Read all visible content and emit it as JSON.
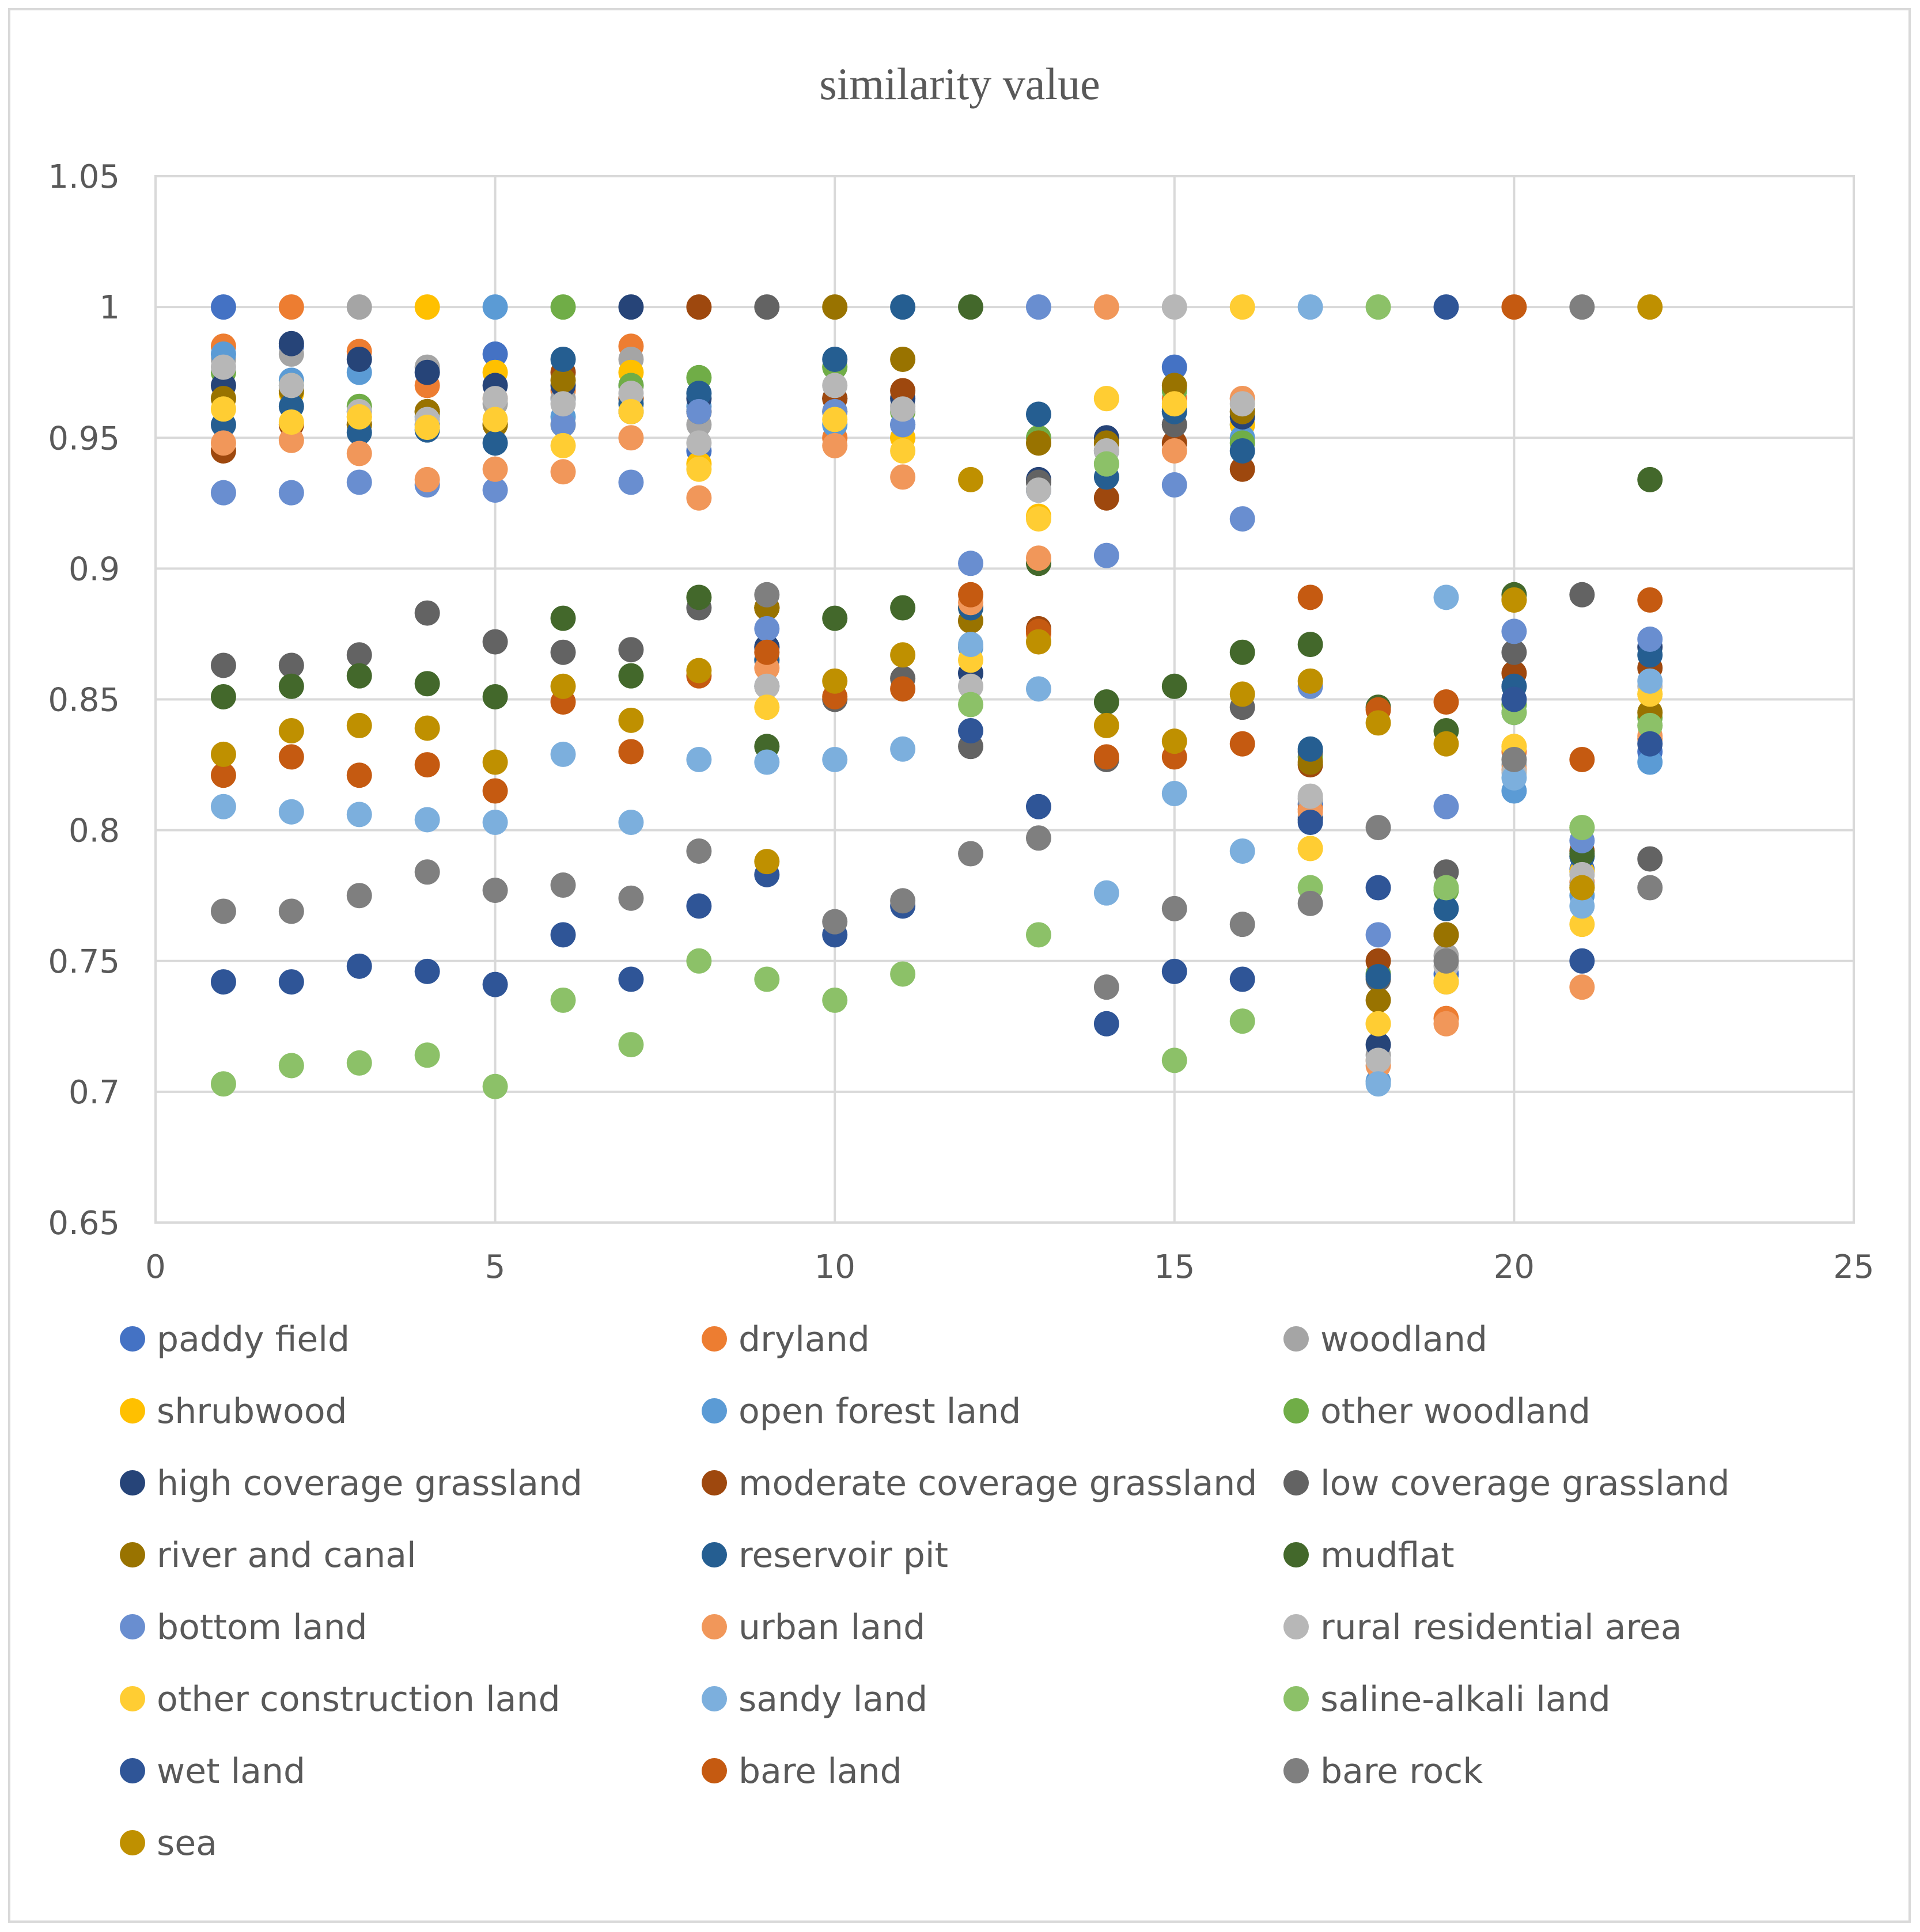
{
  "chart_data": {
    "type": "scatter",
    "title": "similarity value",
    "xlabel": "",
    "ylabel": "",
    "xlim": [
      0,
      25
    ],
    "ylim": [
      0.65,
      1.05
    ],
    "x_ticks": [
      0,
      5,
      10,
      15,
      20,
      25
    ],
    "y_ticks": [
      0.65,
      0.7,
      0.75,
      0.8,
      0.85,
      0.9,
      0.95,
      1,
      1.05
    ],
    "x_tick_labels": [
      "0",
      "5",
      "10",
      "15",
      "20",
      "25"
    ],
    "y_tick_labels": [
      "0.65",
      "0.7",
      "0.75",
      "0.8",
      "0.85",
      "0.9",
      "0.95",
      "1",
      "1.05"
    ],
    "grid": true,
    "legend_position": "bottom",
    "x": [
      1,
      2,
      3,
      4,
      5,
      6,
      7,
      8,
      9,
      10,
      11,
      12,
      13,
      14,
      15,
      16,
      17,
      18,
      19,
      20,
      21,
      22
    ],
    "series": [
      {
        "name": "paddy field",
        "color": "#4472C4",
        "values": [
          1,
          0.985,
          0.96,
          0.955,
          0.982,
          0.965,
          0.97,
          0.945,
          0.855,
          0.96,
          0.955,
          0.86,
          0.93,
          0.945,
          0.977,
          0.955,
          0.81,
          0.745,
          0.745,
          0.845,
          0.785,
          0.83
        ]
      },
      {
        "name": "dryland",
        "color": "#ED7D31",
        "values": [
          0.985,
          1,
          0.983,
          0.97,
          0.965,
          0.968,
          0.985,
          0.96,
          0.885,
          0.95,
          0.95,
          0.885,
          0.875,
          0.945,
          0.965,
          0.965,
          0.808,
          0.712,
          0.728,
          0.83,
          0.78,
          0.835
        ]
      },
      {
        "name": "woodland",
        "color": "#A5A5A5",
        "values": [
          0.98,
          0.982,
          1,
          0.977,
          0.963,
          0.965,
          0.98,
          0.955,
          0.855,
          0.965,
          0.962,
          0.855,
          0.93,
          0.945,
          0.96,
          0.96,
          0.812,
          0.714,
          0.752,
          0.825,
          0.779,
          0.84
        ]
      },
      {
        "name": "shrubwood",
        "color": "#FFC000",
        "values": [
          0.965,
          0.967,
          0.958,
          1,
          0.975,
          0.955,
          0.975,
          0.94,
          0.885,
          0.96,
          0.95,
          0.87,
          0.92,
          0.965,
          0.962,
          0.955,
          0.793,
          0.726,
          0.742,
          0.832,
          0.784,
          0.852
        ]
      },
      {
        "name": "open forest land",
        "color": "#5B9BD5",
        "values": [
          0.982,
          0.972,
          0.975,
          0.958,
          1,
          0.958,
          0.96,
          0.962,
          0.87,
          0.955,
          0.955,
          0.87,
          0.93,
          0.945,
          0.96,
          0.95,
          0.805,
          0.704,
          0.742,
          0.815,
          0.775,
          0.826
        ]
      },
      {
        "name": "other woodland",
        "color": "#70AD47",
        "values": [
          0.975,
          0.97,
          0.962,
          0.96,
          0.955,
          1,
          0.97,
          0.973,
          0.885,
          0.977,
          0.96,
          0.885,
          0.95,
          0.94,
          0.968,
          0.948,
          0.828,
          0.745,
          0.777,
          0.848,
          0.801,
          0.843
        ]
      },
      {
        "name": "high coverage grassland",
        "color": "#264478",
        "values": [
          0.97,
          0.986,
          0.98,
          0.975,
          0.97,
          0.97,
          1,
          0.965,
          0.87,
          0.965,
          0.965,
          0.86,
          0.934,
          0.95,
          0.955,
          0.958,
          0.804,
          0.718,
          0.76,
          0.855,
          0.79,
          0.87
        ]
      },
      {
        "name": "moderate coverage grassland",
        "color": "#9E480E",
        "values": [
          0.945,
          0.955,
          0.955,
          0.96,
          0.955,
          0.975,
          0.965,
          1,
          0.885,
          0.965,
          0.968,
          0.88,
          0.877,
          0.927,
          0.948,
          0.938,
          0.825,
          0.75,
          0.76,
          0.86,
          0.792,
          0.862
        ]
      },
      {
        "name": "low coverage grassland",
        "color": "#636363",
        "values": [
          0.863,
          0.863,
          0.867,
          0.883,
          0.872,
          0.868,
          0.869,
          0.885,
          1,
          0.85,
          0.858,
          0.832,
          0.933,
          0.827,
          0.955,
          0.847,
          0.83,
          0.743,
          0.784,
          0.868,
          0.89,
          0.789
        ]
      },
      {
        "name": "river and canal",
        "color": "#997300",
        "values": [
          0.965,
          0.968,
          0.955,
          0.96,
          0.955,
          0.972,
          0.96,
          0.96,
          0.885,
          1,
          0.98,
          0.88,
          0.948,
          0.948,
          0.97,
          0.96,
          0.826,
          0.735,
          0.76,
          0.888,
          0.778,
          0.845
        ]
      },
      {
        "name": "reservoir pit",
        "color": "#255E91",
        "values": [
          0.955,
          0.962,
          0.952,
          0.953,
          0.948,
          0.98,
          0.963,
          0.967,
          0.865,
          0.98,
          1,
          0.885,
          0.959,
          0.935,
          0.96,
          0.945,
          0.831,
          0.744,
          0.77,
          0.855,
          0.79,
          0.867
        ]
      },
      {
        "name": "mudflat",
        "color": "#43682B",
        "values": [
          0.851,
          0.855,
          0.859,
          0.856,
          0.851,
          0.881,
          0.859,
          0.889,
          0.832,
          0.881,
          0.885,
          1,
          0.902,
          0.849,
          0.855,
          0.868,
          0.871,
          0.847,
          0.838,
          0.89,
          0.791,
          0.934
        ]
      },
      {
        "name": "bottom land",
        "color": "#698ED0",
        "values": [
          0.929,
          0.929,
          0.933,
          0.932,
          0.93,
          0.955,
          0.933,
          0.96,
          0.877,
          0.96,
          0.955,
          0.902,
          1,
          0.905,
          0.932,
          0.919,
          0.855,
          0.76,
          0.809,
          0.876,
          0.796,
          0.873
        ]
      },
      {
        "name": "urban land",
        "color": "#F1975A",
        "values": [
          0.948,
          0.949,
          0.944,
          0.934,
          0.938,
          0.937,
          0.95,
          0.927,
          0.862,
          0.947,
          0.935,
          0.887,
          0.904,
          1,
          0.945,
          0.965,
          0.807,
          0.71,
          0.726,
          0.823,
          0.74,
          0.836
        ]
      },
      {
        "name": "rural residential area",
        "color": "#B7B7B7",
        "values": [
          0.977,
          0.97,
          0.96,
          0.957,
          0.965,
          0.963,
          0.967,
          0.948,
          0.855,
          0.97,
          0.961,
          0.855,
          0.93,
          0.945,
          1,
          0.963,
          0.813,
          0.712,
          0.748,
          0.822,
          0.783,
          0.855
        ]
      },
      {
        "name": "other construction land",
        "color": "#FFCD33",
        "values": [
          0.961,
          0.956,
          0.958,
          0.954,
          0.957,
          0.947,
          0.96,
          0.938,
          0.847,
          0.957,
          0.945,
          0.865,
          0.919,
          0.965,
          0.963,
          1,
          0.793,
          0.726,
          0.742,
          0.832,
          0.764,
          0.852
        ]
      },
      {
        "name": "sandy land",
        "color": "#7CAFDD",
        "values": [
          0.809,
          0.807,
          0.806,
          0.804,
          0.803,
          0.829,
          0.803,
          0.827,
          0.826,
          0.827,
          0.831,
          0.871,
          0.854,
          0.776,
          0.814,
          0.792,
          1,
          0.703,
          0.889,
          0.82,
          0.771,
          0.857
        ]
      },
      {
        "name": "saline-alkali land",
        "color": "#8CC168",
        "values": [
          0.703,
          0.71,
          0.711,
          0.714,
          0.702,
          0.735,
          0.718,
          0.75,
          0.743,
          0.735,
          0.745,
          0.848,
          0.76,
          0.94,
          0.712,
          0.727,
          0.778,
          1,
          0.778,
          0.845,
          0.801,
          0.84
        ]
      },
      {
        "name": "wet land",
        "color": "#2F5597",
        "values": [
          0.742,
          0.742,
          0.748,
          0.746,
          0.741,
          0.76,
          0.743,
          0.771,
          0.783,
          0.76,
          0.771,
          0.838,
          0.809,
          0.726,
          0.746,
          0.743,
          0.803,
          0.778,
          1,
          0.85,
          0.75,
          0.833
        ]
      },
      {
        "name": "bare land",
        "color": "#C55A11",
        "values": [
          0.821,
          0.828,
          0.821,
          0.825,
          0.815,
          0.849,
          0.83,
          0.859,
          0.868,
          0.851,
          0.854,
          0.89,
          0.876,
          0.828,
          0.828,
          0.833,
          0.889,
          0.846,
          0.849,
          1,
          0.827,
          0.888
        ]
      },
      {
        "name": "bare rock",
        "color": "#7F7F7F",
        "values": [
          0.769,
          0.769,
          0.775,
          0.784,
          0.777,
          0.779,
          0.774,
          0.792,
          0.89,
          0.765,
          0.773,
          0.791,
          0.797,
          0.74,
          0.77,
          0.764,
          0.772,
          0.801,
          0.75,
          0.827,
          1,
          0.778
        ]
      },
      {
        "name": "sea",
        "color": "#BF9000",
        "values": [
          0.829,
          0.838,
          0.84,
          0.839,
          0.826,
          0.855,
          0.842,
          0.861,
          0.788,
          0.857,
          0.867,
          0.934,
          0.872,
          0.84,
          0.834,
          0.852,
          0.857,
          0.841,
          0.833,
          0.888,
          0.778,
          1
        ]
      }
    ]
  }
}
